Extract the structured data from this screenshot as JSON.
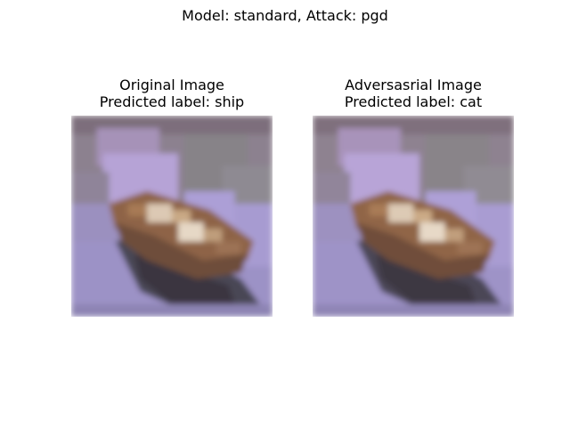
{
  "figure": {
    "title": "Model: standard, Attack: pgd"
  },
  "panels": [
    {
      "title_line1": "Original Image",
      "title_line2": "Predicted label: ship",
      "image": "blurry low-resolution photo of a small brown wooden boat on lavender water"
    },
    {
      "title_line1": "Adversasrial Image",
      "title_line2": " Predicted label: cat",
      "image": "same boat photo with imperceptible adversarial perturbation"
    }
  ],
  "colors": {
    "sky": "#8d7f8e",
    "water": "#9a90c4",
    "boat_wood": "#9a6a44",
    "boat_dark": "#3f3b44",
    "highlight": "#e8d9c6"
  }
}
